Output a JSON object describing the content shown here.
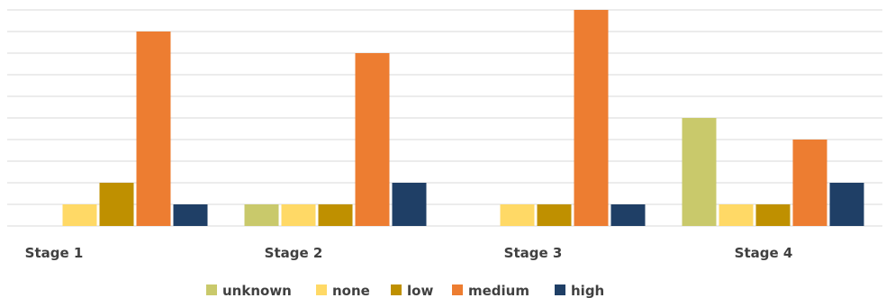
{
  "chart_data": {
    "type": "bar",
    "title": "",
    "xlabel": "",
    "ylabel": "",
    "categories": [
      "Stage 1",
      "Stage 2",
      "Stage 3",
      "Stage 4"
    ],
    "ylim": [
      0,
      10
    ],
    "grid": true,
    "legend_position": "bottom",
    "series": [
      {
        "name": "unknown",
        "color": "#c9c96b",
        "values": [
          0,
          1,
          0,
          5
        ]
      },
      {
        "name": "none",
        "color": "#ffd966",
        "values": [
          1,
          1,
          1,
          1
        ]
      },
      {
        "name": "low",
        "color": "#bf9000",
        "values": [
          2,
          1,
          1,
          1
        ]
      },
      {
        "name": "medium",
        "color": "#ed7d31",
        "values": [
          9,
          8,
          10,
          4
        ]
      },
      {
        "name": "high",
        "color": "#1f3f66",
        "values": [
          1,
          2,
          1,
          2
        ]
      }
    ]
  }
}
